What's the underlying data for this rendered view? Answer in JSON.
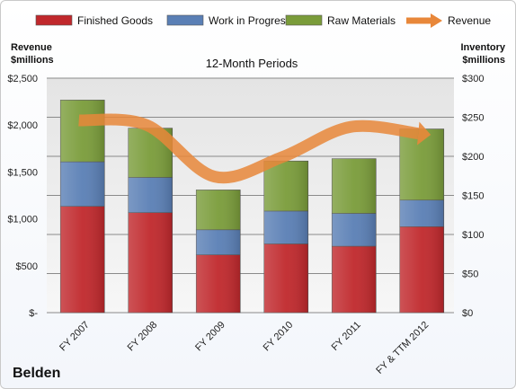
{
  "chart_data": {
    "type": "bar",
    "stacked": true,
    "title": "12-Month Periods",
    "company": "Belden",
    "categories": [
      "FY 2007",
      "FY 2008",
      "FY 2009",
      "FY 2010",
      "FY 2011",
      "FY & TTM 2012"
    ],
    "series": [
      {
        "name": "Finished Goods",
        "color": "#c0282c",
        "values": [
          136,
          128,
          74,
          88,
          85,
          110
        ]
      },
      {
        "name": "Work in Progress",
        "color": "#5a7fb5",
        "values": [
          57,
          45,
          32,
          42,
          42,
          34
        ]
      },
      {
        "name": "Raw Materials",
        "color": "#7a9c3a",
        "values": [
          79,
          63,
          51,
          64,
          70,
          91
        ]
      }
    ],
    "line_series": {
      "name": "Revenue",
      "color": "#e8873a",
      "values": [
        2050,
        2000,
        1450,
        1660,
        1980,
        1910
      ]
    },
    "left_axis": {
      "label": "Revenue\n$millions",
      "ticks": [
        "$-",
        "$500",
        "$1,000",
        "$1,500",
        "$2,000",
        "$2,500"
      ],
      "range": [
        0,
        2500
      ]
    },
    "right_axis": {
      "label": "Inventory\n$millions",
      "ticks": [
        "$0",
        "$50",
        "$100",
        "$150",
        "$200",
        "$250",
        "$300"
      ],
      "range": [
        0,
        300
      ]
    },
    "legend_position": "top",
    "grid": true
  }
}
